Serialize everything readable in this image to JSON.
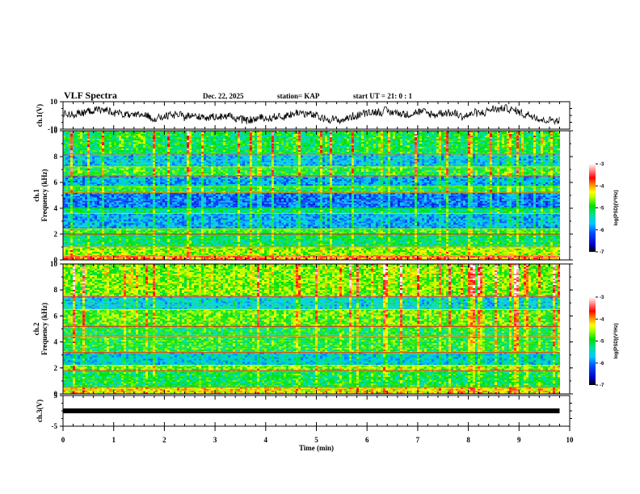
{
  "header": {
    "title": "VLF Spectra",
    "date": "Dec. 22, 2025",
    "station": "station= KAP",
    "start_ut": "start  UT =   21: 0  : 1"
  },
  "chart_data": [
    {
      "type": "line",
      "panel": "ch1-waveform",
      "ylabel": "ch.1(V)",
      "ylim": [
        -10,
        10
      ],
      "yticks": [
        "10",
        "-10"
      ],
      "xlim": [
        0,
        10
      ],
      "data_end_min": 9.8,
      "note": "noisy waveform fluctuating roughly between -6 and 8 V"
    },
    {
      "type": "heatmap",
      "panel": "ch1-spectrogram",
      "ylabel_line1": "ch.1",
      "ylabel_line2": "Frequency  (kHz)",
      "ylim": [
        0,
        10
      ],
      "yticks": [
        "0",
        "2",
        "4",
        "6",
        "8",
        "10"
      ],
      "xlim": [
        0,
        10
      ],
      "data_end_min": 9.8,
      "colorbar": {
        "label": "log(PSD)(V²/Hz)",
        "range": [
          -7,
          -3
        ],
        "ticks": [
          "-3",
          "-4",
          "-5",
          "-6",
          "-7"
        ]
      },
      "bands_khz": [
        {
          "f0": 0.0,
          "f1": 0.3,
          "level": -4.0
        },
        {
          "f0": 0.3,
          "f1": 1.0,
          "level": -4.6
        },
        {
          "f0": 1.0,
          "f1": 2.0,
          "level": -5.2
        },
        {
          "f0": 2.0,
          "f1": 2.4,
          "level": -4.9
        },
        {
          "f0": 2.4,
          "f1": 3.6,
          "level": -5.8
        },
        {
          "f0": 3.6,
          "f1": 4.0,
          "level": -5.3
        },
        {
          "f0": 4.0,
          "f1": 5.2,
          "level": -6.1
        },
        {
          "f0": 5.2,
          "f1": 5.7,
          "level": -5.1
        },
        {
          "f0": 5.7,
          "f1": 6.5,
          "level": -5.8
        },
        {
          "f0": 6.5,
          "f1": 7.2,
          "level": -5.0
        },
        {
          "f0": 7.2,
          "f1": 8.2,
          "level": -5.7
        },
        {
          "f0": 8.2,
          "f1": 10.0,
          "level": -5.1
        }
      ]
    },
    {
      "type": "heatmap",
      "panel": "ch2-spectrogram",
      "ylabel_line1": "ch.2",
      "ylabel_line2": "Frequency  (kHz)",
      "ylim": [
        0,
        10
      ],
      "yticks": [
        "0",
        "2",
        "4",
        "6",
        "8",
        "10"
      ],
      "xlim": [
        0,
        10
      ],
      "data_end_min": 9.8,
      "colorbar": {
        "label": "log(PSD)(V²/Hz)",
        "range": [
          -7,
          -3
        ],
        "ticks": [
          "-3",
          "-4",
          "-5",
          "-6",
          "-7"
        ]
      },
      "bands_khz": [
        {
          "f0": 0.0,
          "f1": 0.5,
          "level": -4.3
        },
        {
          "f0": 0.5,
          "f1": 1.8,
          "level": -5.1
        },
        {
          "f0": 1.8,
          "f1": 2.2,
          "level": -4.7
        },
        {
          "f0": 2.2,
          "f1": 3.2,
          "level": -5.6
        },
        {
          "f0": 3.2,
          "f1": 4.4,
          "level": -5.0
        },
        {
          "f0": 4.4,
          "f1": 5.2,
          "level": -5.1
        },
        {
          "f0": 5.2,
          "f1": 6.5,
          "level": -4.8
        },
        {
          "f0": 6.5,
          "f1": 7.5,
          "level": -5.6
        },
        {
          "f0": 7.5,
          "f1": 10.0,
          "level": -4.7
        }
      ]
    },
    {
      "type": "line",
      "panel": "ch3-waveform",
      "ylabel": "ch.3(V)",
      "ylim": [
        -5,
        5
      ],
      "yticks": [
        "5",
        "-5"
      ],
      "xlim": [
        0,
        10
      ],
      "data_end_min": 9.8,
      "constant_value": 0,
      "xlabel": "Time  (min)",
      "xticks": [
        "0",
        "1",
        "2",
        "3",
        "4",
        "5",
        "6",
        "7",
        "8",
        "9",
        "10"
      ]
    }
  ]
}
